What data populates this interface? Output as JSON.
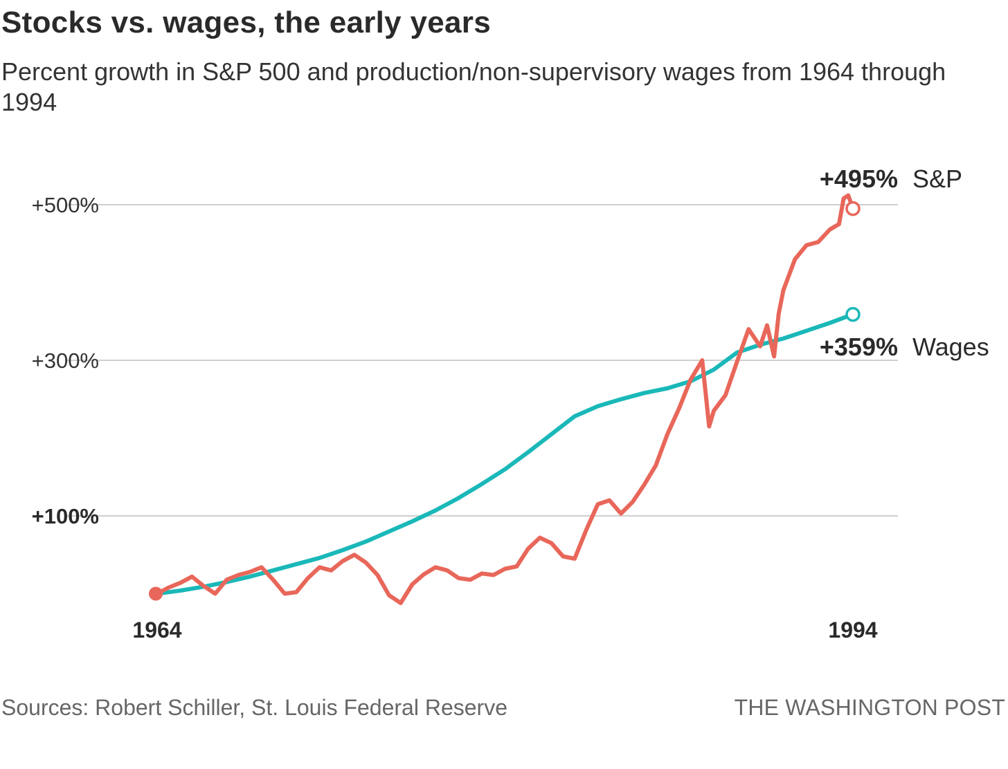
{
  "header": {
    "title": "Stocks vs. wages, the early years",
    "subtitle": "Percent growth in S&P 500 and production/non-supervisory wages from 1964 through 1994"
  },
  "footer": {
    "source": "Sources: Robert Schiller, St. Louis Federal Reserve",
    "credit": "THE WASHINGTON POST"
  },
  "colors": {
    "sp": "#e8675a",
    "wages": "#1ab8b8",
    "grid": "#cfcfcf"
  },
  "chart_data": {
    "type": "line",
    "title": "Stocks vs. wages, the early years",
    "xlabel": "",
    "ylabel": "",
    "xlim": [
      1964,
      1994
    ],
    "ylim": [
      -10,
      530
    ],
    "y_ticks": [
      {
        "value": 100,
        "label": "+100%",
        "bold": true
      },
      {
        "value": 300,
        "label": "+300%",
        "bold": false
      },
      {
        "value": 500,
        "label": "+500%",
        "bold": false
      }
    ],
    "x_ticks": [
      {
        "value": 1964,
        "label": "1964"
      },
      {
        "value": 1994,
        "label": "1994"
      }
    ],
    "series": [
      {
        "name": "S&P",
        "end_label": "+495%",
        "x": [
          1964.0,
          1964.5,
          1965.0,
          1965.5,
          1966.0,
          1966.5,
          1967.0,
          1967.5,
          1968.0,
          1968.5,
          1969.0,
          1969.5,
          1970.0,
          1970.5,
          1971.0,
          1971.5,
          1972.0,
          1972.5,
          1973.0,
          1973.5,
          1974.0,
          1974.5,
          1975.0,
          1975.5,
          1976.0,
          1976.5,
          1977.0,
          1977.5,
          1978.0,
          1978.5,
          1979.0,
          1979.5,
          1980.0,
          1980.5,
          1981.0,
          1981.5,
          1982.0,
          1982.5,
          1983.0,
          1983.5,
          1984.0,
          1984.5,
          1985.0,
          1985.5,
          1986.0,
          1986.5,
          1987.0,
          1987.5,
          1987.8,
          1988.0,
          1988.5,
          1989.0,
          1989.5,
          1990.0,
          1990.3,
          1990.6,
          1990.8,
          1991.0,
          1991.5,
          1992.0,
          1992.5,
          1993.0,
          1993.4,
          1993.6,
          1993.8,
          1994.0
        ],
        "values": [
          0,
          8,
          14,
          22,
          10,
          0,
          18,
          24,
          28,
          34,
          18,
          0,
          2,
          20,
          34,
          30,
          42,
          50,
          40,
          24,
          -2,
          -12,
          12,
          25,
          34,
          30,
          20,
          18,
          26,
          24,
          32,
          35,
          58,
          72,
          65,
          48,
          45,
          82,
          115,
          120,
          103,
          118,
          140,
          165,
          205,
          238,
          275,
          300,
          215,
          235,
          255,
          298,
          340,
          318,
          345,
          305,
          360,
          390,
          430,
          448,
          452,
          468,
          475,
          508,
          512,
          495
        ]
      },
      {
        "name": "Wages",
        "end_label": "+359%",
        "x": [
          1964,
          1965,
          1966,
          1967,
          1968,
          1969,
          1970,
          1971,
          1972,
          1973,
          1974,
          1975,
          1976,
          1977,
          1978,
          1979,
          1980,
          1981,
          1982,
          1983,
          1984,
          1985,
          1986,
          1987,
          1988,
          1989,
          1990,
          1991,
          1992,
          1993,
          1994
        ],
        "values": [
          0,
          4,
          9,
          15,
          22,
          30,
          38,
          46,
          56,
          67,
          80,
          93,
          107,
          123,
          141,
          160,
          182,
          205,
          228,
          241,
          250,
          258,
          264,
          273,
          288,
          310,
          320,
          328,
          338,
          348,
          359
        ]
      }
    ]
  }
}
